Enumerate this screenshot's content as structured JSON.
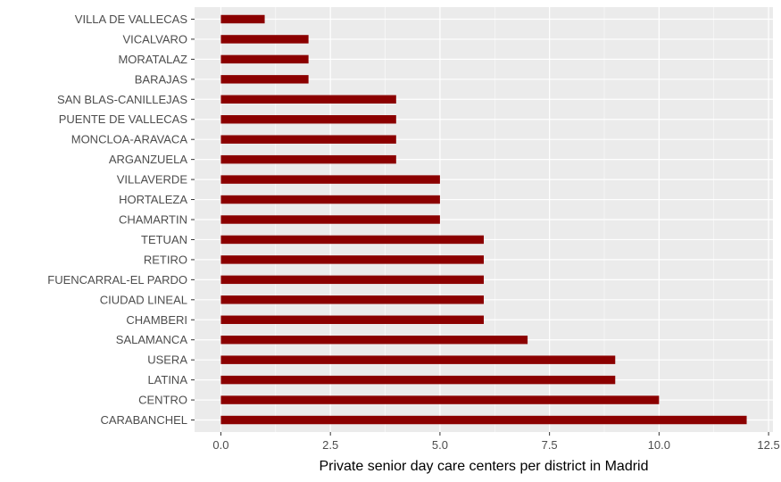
{
  "chart_data": {
    "type": "bar",
    "orientation": "horizontal",
    "xlabel": "Private senior day care centers per district in Madrid",
    "ylabel": "",
    "title": "",
    "xlim": [
      -0.6,
      12.6
    ],
    "x_ticks": [
      0,
      2.5,
      5,
      7.5,
      10,
      12.5
    ],
    "x_tick_labels": [
      "0.0",
      "2.5",
      "5.0",
      "7.5",
      "10.0",
      "12.5"
    ],
    "grid": true,
    "legend": "none",
    "bar_color": "#8b0000",
    "panel_background": "#ebebeb",
    "grid_color": "#ffffff",
    "categories": [
      "CARABANCHEL",
      "CENTRO",
      "LATINA",
      "USERA",
      "SALAMANCA",
      "CHAMBERI",
      "CIUDAD LINEAL",
      "FUENCARRAL-EL PARDO",
      "RETIRO",
      "TETUAN",
      "CHAMARTIN",
      "HORTALEZA",
      "VILLAVERDE",
      "ARGANZUELA",
      "MONCLOA-ARAVACA",
      "PUENTE DE VALLECAS",
      "SAN BLAS-CANILLEJAS",
      "BARAJAS",
      "MORATALAZ",
      "VICALVARO",
      "VILLA DE VALLECAS"
    ],
    "values": [
      12,
      10,
      9,
      9,
      7,
      6,
      6,
      6,
      6,
      6,
      5,
      5,
      5,
      4,
      4,
      4,
      4,
      2,
      2,
      2,
      1
    ]
  }
}
